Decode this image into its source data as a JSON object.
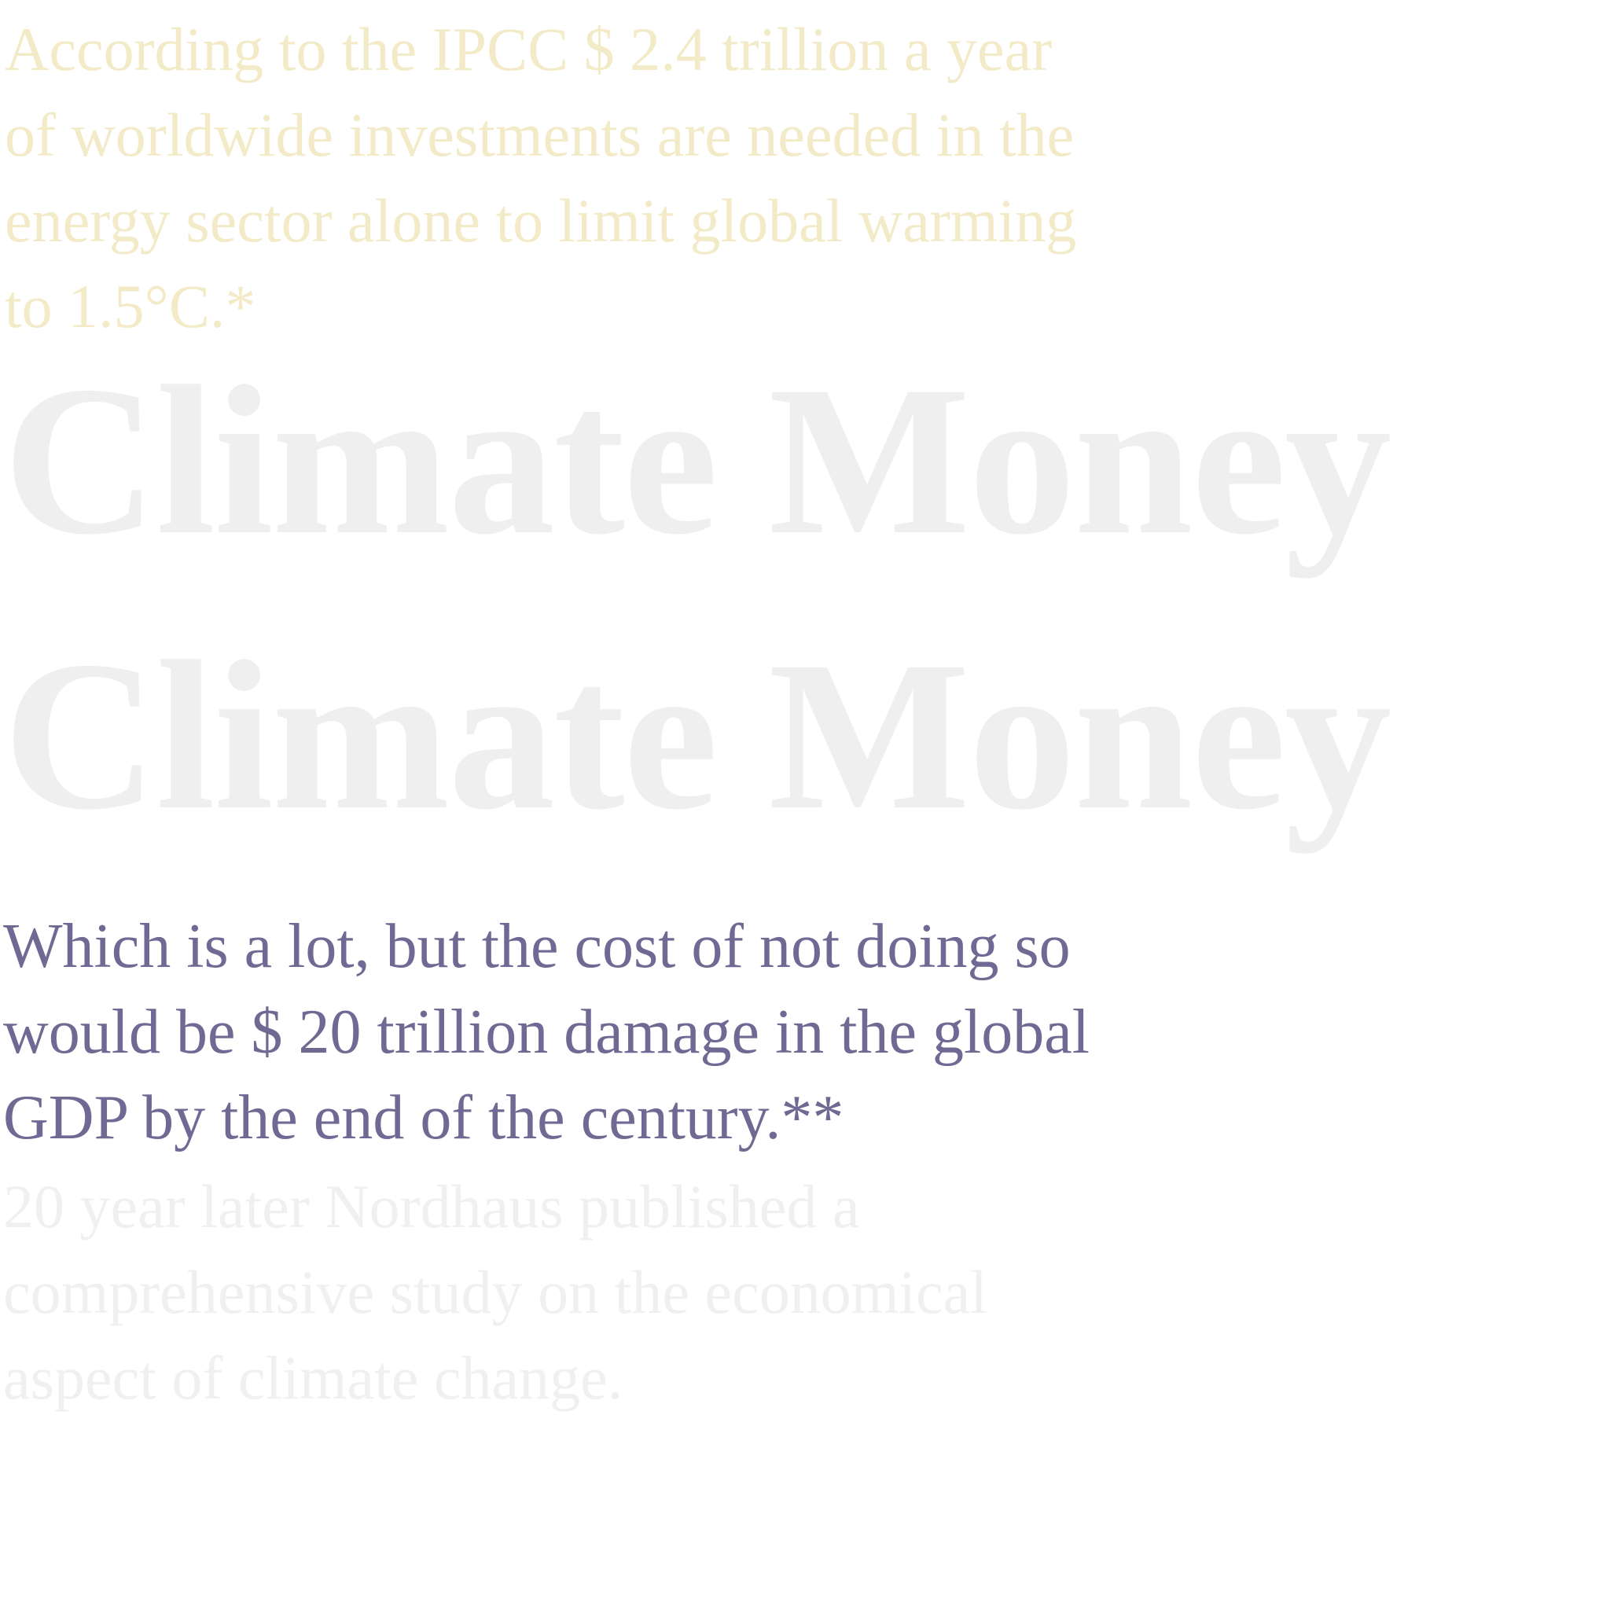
{
  "intro": {
    "lines": [
      "According to the IPCC $ 2.4 trillion a year",
      "of worldwide investments are needed in the",
      "energy sector alone to limit global warming",
      "to 1.5°C.*"
    ]
  },
  "headline": {
    "first": "Climate Money",
    "second": "Climate Money"
  },
  "emphasis": {
    "lines": [
      "Which is a lot, but the cost of not doing so",
      "would be $ 20 trillion damage in the global",
      "GDP by the end of the century.**"
    ]
  },
  "outro": {
    "lines": [
      "20 year later Nordhaus published a",
      "comprehensive study on the economical",
      "aspect of climate change."
    ]
  },
  "colors": {
    "intro_text": "#f3ebc8",
    "headline_text": "#efefef",
    "emphasis_text": "#716893",
    "outro_text": "#f0f0f0",
    "background": "#ffffff"
  }
}
